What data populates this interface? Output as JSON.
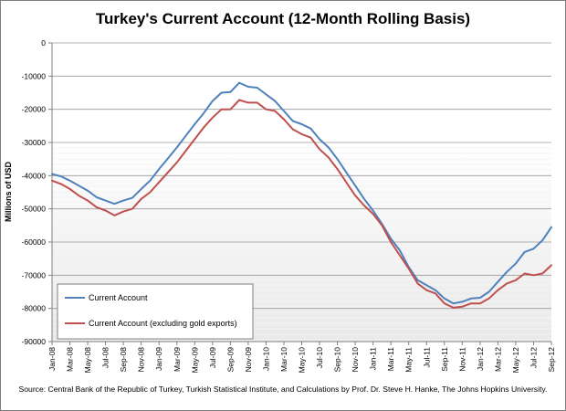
{
  "chart_data": {
    "type": "line",
    "title": "Turkey's Current Account (12-Month Rolling Basis)",
    "ylabel": "Millions of USD",
    "xlabel": "",
    "ylim": [
      -90000,
      0
    ],
    "y_ticks": [
      0,
      -10000,
      -20000,
      -30000,
      -40000,
      -50000,
      -60000,
      -70000,
      -80000,
      -90000
    ],
    "x_tick_labels": [
      "Jan-08",
      "Mar-08",
      "May-08",
      "Jul-08",
      "Sep-08",
      "Nov-08",
      "Jan-09",
      "Mar-09",
      "May-09",
      "Jul-09",
      "Sep-09",
      "Nov-09",
      "Jan-10",
      "Mar-10",
      "May-10",
      "Jul-10",
      "Sep-10",
      "Nov-10",
      "Jan-11",
      "Mar-11",
      "May-11",
      "Jul-11",
      "Sep-11",
      "Nov-11",
      "Jan-12",
      "Mar-12",
      "May-12",
      "Jul-12",
      "Sep-12"
    ],
    "legend_position": "bottom-left",
    "grid": true,
    "series": [
      {
        "name": "Current Account",
        "color": "#4f81bd",
        "values": [
          -39500,
          -40200,
          -41500,
          -43000,
          -44500,
          -46500,
          -47500,
          -48500,
          -47500,
          -46700,
          -44000,
          -41500,
          -38000,
          -34800,
          -31500,
          -28000,
          -24500,
          -21200,
          -17500,
          -15000,
          -14800,
          -12000,
          -13200,
          -13500,
          -15500,
          -17500,
          -20500,
          -23500,
          -24500,
          -25800,
          -29000,
          -31500,
          -35000,
          -39000,
          -43000,
          -47000,
          -50500,
          -54500,
          -59000,
          -62500,
          -67500,
          -71500,
          -73000,
          -74500,
          -77000,
          -78500,
          -78000,
          -77000,
          -76800,
          -75000,
          -72000,
          -69000,
          -66500,
          -63000,
          -62000,
          -59500,
          -55500
        ]
      },
      {
        "name": "Current Account (excluding gold exports)",
        "color": "#c0504d",
        "values": [
          -41500,
          -42500,
          -44000,
          -46000,
          -47500,
          -49500,
          -50500,
          -52000,
          -50800,
          -50000,
          -47000,
          -45000,
          -42000,
          -39000,
          -36000,
          -32500,
          -29000,
          -25500,
          -22500,
          -20000,
          -20000,
          -17200,
          -18000,
          -18000,
          -20000,
          -20500,
          -23000,
          -26000,
          -27500,
          -28500,
          -32000,
          -34500,
          -38000,
          -42000,
          -46000,
          -49000,
          -51500,
          -55000,
          -60000,
          -64000,
          -68000,
          -72500,
          -74500,
          -75500,
          -78500,
          -79800,
          -79500,
          -78500,
          -78500,
          -77000,
          -74500,
          -72500,
          -71500,
          -69500,
          -70000,
          -69500,
          -67000
        ]
      }
    ]
  },
  "source_text": "Source: Central Bank of the Republic of Turkey, Turkish Statistical Institute, and Calculations by Prof. Dr. Steve H. Hanke, The Johns Hopkins University."
}
